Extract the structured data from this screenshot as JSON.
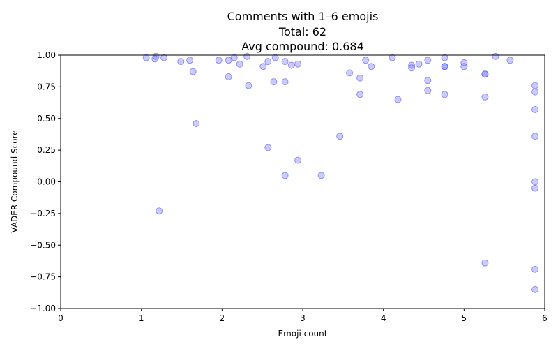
{
  "chart_data": {
    "type": "scatter",
    "title": [
      "Comments with 1–6 emojis",
      "Total: 62",
      "Avg compound: 0.684"
    ],
    "xlabel": "Emoji count",
    "ylabel": "VADER Compound Score",
    "xlim": [
      0,
      6
    ],
    "ylim": [
      -1.0,
      1.0
    ],
    "xticks": [
      0,
      1,
      2,
      3,
      4,
      5,
      6
    ],
    "xtick_labels": [
      "0",
      "1",
      "2",
      "3",
      "4",
      "5",
      "6"
    ],
    "yticks": [
      -1.0,
      -0.75,
      -0.5,
      -0.25,
      0.0,
      0.25,
      0.5,
      0.75,
      1.0
    ],
    "ytick_labels": [
      "−1.00",
      "−0.75",
      "−0.50",
      "−0.25",
      "0.00",
      "0.25",
      "0.50",
      "0.75",
      "1.00"
    ],
    "grid": false,
    "point_color": "#6b6bff",
    "points": [
      {
        "x": 1.06,
        "y": 0.98
      },
      {
        "x": 1.17,
        "y": 0.97
      },
      {
        "x": 1.18,
        "y": 0.99
      },
      {
        "x": 1.22,
        "y": -0.23
      },
      {
        "x": 1.28,
        "y": 0.98
      },
      {
        "x": 1.49,
        "y": 0.95
      },
      {
        "x": 1.6,
        "y": 0.96
      },
      {
        "x": 1.64,
        "y": 0.87
      },
      {
        "x": 1.68,
        "y": 0.46
      },
      {
        "x": 1.96,
        "y": 0.96
      },
      {
        "x": 2.08,
        "y": 0.96
      },
      {
        "x": 2.08,
        "y": 0.83
      },
      {
        "x": 2.15,
        "y": 0.98
      },
      {
        "x": 2.22,
        "y": 0.93
      },
      {
        "x": 2.31,
        "y": 0.99
      },
      {
        "x": 2.33,
        "y": 0.76
      },
      {
        "x": 2.51,
        "y": 0.91
      },
      {
        "x": 2.57,
        "y": 0.95
      },
      {
        "x": 2.57,
        "y": 0.27
      },
      {
        "x": 2.64,
        "y": 0.79
      },
      {
        "x": 2.66,
        "y": 0.98
      },
      {
        "x": 2.78,
        "y": 0.95
      },
      {
        "x": 2.78,
        "y": 0.79
      },
      {
        "x": 2.78,
        "y": 0.05
      },
      {
        "x": 2.86,
        "y": 0.92
      },
      {
        "x": 2.94,
        "y": 0.93
      },
      {
        "x": 2.94,
        "y": 0.17
      },
      {
        "x": 3.23,
        "y": 0.05
      },
      {
        "x": 3.46,
        "y": 0.36
      },
      {
        "x": 3.58,
        "y": 0.86
      },
      {
        "x": 3.71,
        "y": 0.82
      },
      {
        "x": 3.71,
        "y": 0.69
      },
      {
        "x": 3.78,
        "y": 0.96
      },
      {
        "x": 3.85,
        "y": 0.91
      },
      {
        "x": 4.11,
        "y": 0.98
      },
      {
        "x": 4.18,
        "y": 0.65
      },
      {
        "x": 4.35,
        "y": 0.92
      },
      {
        "x": 4.35,
        "y": 0.9
      },
      {
        "x": 4.44,
        "y": 0.93
      },
      {
        "x": 4.55,
        "y": 0.96
      },
      {
        "x": 4.55,
        "y": 0.8
      },
      {
        "x": 4.55,
        "y": 0.72
      },
      {
        "x": 4.76,
        "y": 0.98
      },
      {
        "x": 4.76,
        "y": 0.91
      },
      {
        "x": 4.76,
        "y": 0.91
      },
      {
        "x": 4.76,
        "y": 0.69
      },
      {
        "x": 5.0,
        "y": 0.94
      },
      {
        "x": 5.0,
        "y": 0.91
      },
      {
        "x": 5.26,
        "y": 0.85
      },
      {
        "x": 5.26,
        "y": 0.85
      },
      {
        "x": 5.26,
        "y": 0.67
      },
      {
        "x": 5.26,
        "y": -0.64
      },
      {
        "x": 5.39,
        "y": 0.99
      },
      {
        "x": 5.57,
        "y": 0.96
      },
      {
        "x": 5.88,
        "y": 0.76
      },
      {
        "x": 5.88,
        "y": 0.71
      },
      {
        "x": 5.88,
        "y": 0.57
      },
      {
        "x": 5.88,
        "y": 0.36
      },
      {
        "x": 5.88,
        "y": 0.0
      },
      {
        "x": 5.88,
        "y": -0.05
      },
      {
        "x": 5.88,
        "y": -0.69
      },
      {
        "x": 5.88,
        "y": -0.85
      }
    ]
  }
}
